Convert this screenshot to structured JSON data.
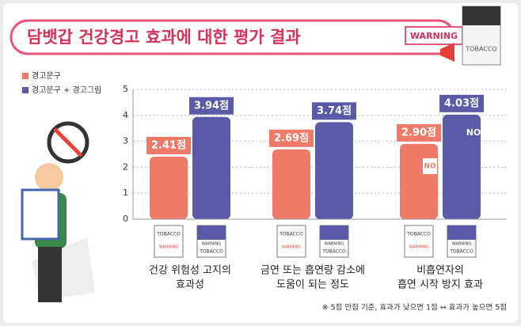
{
  "chart_data": {
    "type": "bar",
    "title": "담뱃갑 건강경고 효과에 대한 평가 결과",
    "categories": [
      [
        "건강 위험성 고지의",
        "효과성"
      ],
      [
        "금연 또는 흡연량 감소에",
        "도움이 되는 정도"
      ],
      [
        "비흡연자의",
        "흡연 시작 방지 효과"
      ]
    ],
    "series": [
      {
        "name": "경고문구",
        "color": "#f07a68",
        "values": [
          2.41,
          2.69,
          2.9
        ],
        "value_labels": [
          "2.41점",
          "2.69점",
          "2.90점"
        ]
      },
      {
        "name": "경고문구 + 경고그림",
        "color": "#5a5aa8",
        "values": [
          3.94,
          3.74,
          4.03
        ],
        "value_labels": [
          "3.94점",
          "3.74점",
          "4.03점"
        ]
      }
    ],
    "ylim": [
      0,
      5
    ],
    "yticks": [
      0,
      1,
      2,
      3,
      4,
      5
    ],
    "grid": true,
    "note": "※ 5점 만점 기준, 효과가 낮으면 1점 ↔ 효과가 높으면 5점",
    "decor": {
      "warning": "WARNING",
      "tobacco": "TOBACCO",
      "no": "NO"
    }
  }
}
